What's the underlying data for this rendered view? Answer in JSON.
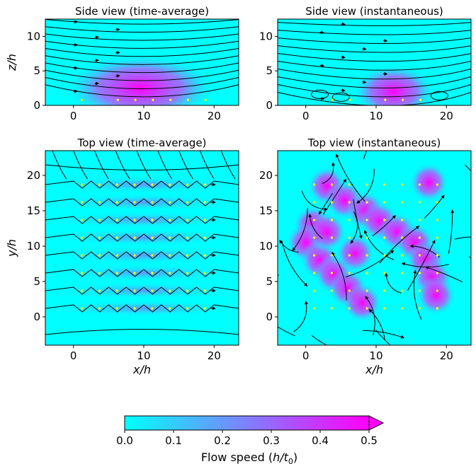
{
  "chart_data": [
    {
      "type": "heatmap",
      "title": "Side view (time-average)",
      "xlabel": "",
      "ylabel": "z/h",
      "xlim": [
        -4,
        23.5
      ],
      "ylim": [
        0,
        12.5
      ],
      "xticks": [
        "0",
        "10",
        "20"
      ],
      "yticks": [
        "0",
        "5",
        "10"
      ],
      "hotspots": [
        {
          "x": 9.5,
          "y": 2.5,
          "speed": 0.38
        }
      ],
      "particles": [
        {
          "x": 1.2,
          "y": 0.8
        },
        {
          "x": 6.3,
          "y": 0.8
        },
        {
          "x": 8.8,
          "y": 0.8
        },
        {
          "x": 11.3,
          "y": 0.8
        },
        {
          "x": 13.8,
          "y": 0.8
        },
        {
          "x": 16.3,
          "y": 0.8
        },
        {
          "x": 18.8,
          "y": 0.8
        }
      ]
    },
    {
      "type": "heatmap",
      "title": "Side view (instantaneous)",
      "xlabel": "",
      "ylabel": "",
      "xlim": [
        -4,
        23.5
      ],
      "ylim": [
        0,
        12.5
      ],
      "xticks": [
        "0",
        "10",
        "20"
      ],
      "yticks": [
        "0",
        "5",
        "10"
      ],
      "hotspots": [
        {
          "x": 12.5,
          "y": 2.0,
          "speed": 0.45
        }
      ],
      "particles": [
        {
          "x": 3.8,
          "y": 0.8
        },
        {
          "x": 6.3,
          "y": 0.8
        },
        {
          "x": 11.3,
          "y": 0.8
        },
        {
          "x": 13.8,
          "y": 0.8
        },
        {
          "x": 16.3,
          "y": 0.8
        }
      ]
    },
    {
      "type": "heatmap",
      "title": "Top view (time-average)",
      "xlabel": "x/h",
      "ylabel": "y/h",
      "xlim": [
        -4,
        23.5
      ],
      "ylim": [
        -4,
        23.5
      ],
      "xticks": [
        "0",
        "10",
        "20"
      ],
      "yticks": [
        "0",
        "5",
        "10",
        "15",
        "20"
      ],
      "hotspots": [
        {
          "x": 10,
          "y": 1.2,
          "speed": 0.18
        },
        {
          "x": 10,
          "y": 3.7,
          "speed": 0.18
        },
        {
          "x": 10,
          "y": 6.2,
          "speed": 0.18
        },
        {
          "x": 10,
          "y": 8.7,
          "speed": 0.18
        },
        {
          "x": 10,
          "y": 11.2,
          "speed": 0.18
        },
        {
          "x": 10,
          "y": 13.7,
          "speed": 0.18
        },
        {
          "x": 10,
          "y": 16.2,
          "speed": 0.18
        },
        {
          "x": 10,
          "y": 18.7,
          "speed": 0.18
        }
      ],
      "particle_grid": {
        "x": [
          1.2,
          3.7,
          6.2,
          8.7,
          11.2,
          13.7,
          16.2,
          18.7
        ],
        "y": [
          1.2,
          3.7,
          6.2,
          8.7,
          11.2,
          13.7,
          16.2,
          18.7
        ]
      }
    },
    {
      "type": "heatmap",
      "title": "Top view (instantaneous)",
      "xlabel": "x/h",
      "ylabel": "",
      "xlim": [
        -4,
        23.5
      ],
      "ylim": [
        -4,
        23.5
      ],
      "xticks": [
        "0",
        "10",
        "20"
      ],
      "yticks": [
        "0",
        "5",
        "10",
        "15",
        "20"
      ],
      "hotspots": [
        {
          "x": 3,
          "y": 18.5,
          "speed": 0.5
        },
        {
          "x": 5.5,
          "y": 16.5,
          "speed": 0.5
        },
        {
          "x": 8.5,
          "y": 15,
          "speed": 0.5
        },
        {
          "x": 10.5,
          "y": 13.5,
          "speed": 0.5
        },
        {
          "x": 13,
          "y": 12,
          "speed": 0.5
        },
        {
          "x": 15.5,
          "y": 10.5,
          "speed": 0.5
        },
        {
          "x": 17,
          "y": 8,
          "speed": 0.5
        },
        {
          "x": 18,
          "y": 5.5,
          "speed": 0.5
        },
        {
          "x": 18.5,
          "y": 3,
          "speed": 0.5
        },
        {
          "x": 17.5,
          "y": 19,
          "speed": 0.5
        },
        {
          "x": 1,
          "y": 13,
          "speed": 0.5
        },
        {
          "x": 0,
          "y": 10.5,
          "speed": 0.5
        },
        {
          "x": 2,
          "y": 8,
          "speed": 0.5
        },
        {
          "x": 4,
          "y": 6,
          "speed": 0.5
        },
        {
          "x": 6,
          "y": 4,
          "speed": 0.5
        },
        {
          "x": 8,
          "y": 2,
          "speed": 0.5
        },
        {
          "x": 3,
          "y": 12,
          "speed": 0.45
        },
        {
          "x": 7,
          "y": 9,
          "speed": 0.4
        }
      ],
      "particle_grid": {
        "x": [
          1.2,
          3.7,
          6.2,
          8.7,
          11.2,
          13.7,
          16.2,
          18.7
        ],
        "y": [
          1.2,
          3.7,
          6.2,
          8.7,
          11.2,
          13.7,
          16.2,
          18.7
        ]
      }
    }
  ],
  "colorbar": {
    "label": "Flow speed (h/t₀)",
    "label_main": "Flow speed (",
    "label_var": "h/t",
    "label_sub": "0",
    "label_end": ")",
    "ticks": [
      "0.0",
      "0.1",
      "0.2",
      "0.3",
      "0.4",
      "0.5"
    ],
    "range": [
      0.0,
      0.5
    ],
    "extend": "max",
    "colors": [
      "#00ffff",
      "#ff00ff"
    ]
  },
  "colors": {
    "background_low": "#00ffff",
    "background_high": "#ff00ff",
    "streamline": "#000000",
    "particle": "#ffff00"
  }
}
